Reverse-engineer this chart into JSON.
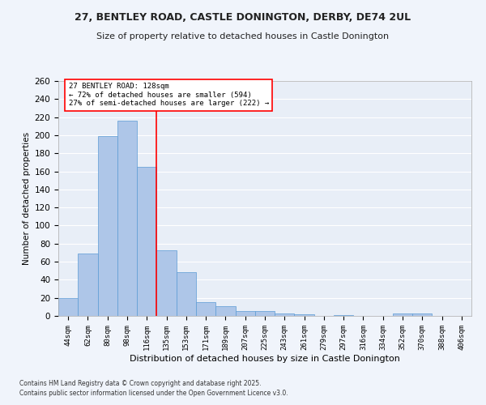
{
  "title_line1": "27, BENTLEY ROAD, CASTLE DONINGTON, DERBY, DE74 2UL",
  "title_line2": "Size of property relative to detached houses in Castle Donington",
  "xlabel": "Distribution of detached houses by size in Castle Donington",
  "ylabel": "Number of detached properties",
  "categories": [
    "44sqm",
    "62sqm",
    "80sqm",
    "98sqm",
    "116sqm",
    "135sqm",
    "153sqm",
    "171sqm",
    "189sqm",
    "207sqm",
    "225sqm",
    "243sqm",
    "261sqm",
    "279sqm",
    "297sqm",
    "316sqm",
    "334sqm",
    "352sqm",
    "370sqm",
    "388sqm",
    "406sqm"
  ],
  "values": [
    20,
    69,
    199,
    216,
    165,
    73,
    48,
    15,
    11,
    5,
    5,
    3,
    2,
    0,
    1,
    0,
    0,
    3,
    3,
    0,
    0
  ],
  "bar_color": "#aec6e8",
  "bar_edge_color": "#5b9bd5",
  "property_label": "27 BENTLEY ROAD: 128sqm",
  "pct_smaller": 72,
  "n_smaller": 594,
  "pct_larger_semi": 27,
  "n_larger_semi": 222,
  "vline_x_index": 4.5,
  "ylim": [
    0,
    260
  ],
  "yticks": [
    0,
    20,
    40,
    60,
    80,
    100,
    120,
    140,
    160,
    180,
    200,
    220,
    240,
    260
  ],
  "background_color": "#e8eef7",
  "grid_color": "#ffffff",
  "fig_background": "#f0f4fb",
  "footnote1": "Contains HM Land Registry data © Crown copyright and database right 2025.",
  "footnote2": "Contains public sector information licensed under the Open Government Licence v3.0."
}
